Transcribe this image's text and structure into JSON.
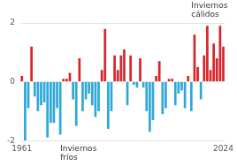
{
  "chart_data": {
    "type": "bar",
    "categories": [
      "1961",
      null,
      null,
      null,
      null,
      null,
      null,
      null,
      null,
      null,
      null,
      null,
      null,
      null,
      null,
      null,
      null,
      null,
      null,
      null,
      null,
      null,
      null,
      null,
      null,
      null,
      null,
      null,
      null,
      null,
      null,
      null,
      null,
      null,
      null,
      null,
      null,
      null,
      null,
      null,
      null,
      null,
      null,
      null,
      null,
      null,
      null,
      null,
      null,
      null,
      null,
      null,
      null,
      null,
      null,
      null,
      null,
      null,
      null,
      null,
      null,
      null,
      null,
      "2024"
    ],
    "values": [
      0.2,
      -2.0,
      -0.9,
      1.2,
      -0.5,
      -1.0,
      -0.8,
      -0.7,
      -1.9,
      -1.4,
      -1.4,
      -0.9,
      -1.8,
      0.1,
      0.1,
      0.3,
      -0.6,
      -1.5,
      0.8,
      -1.0,
      -0.6,
      -0.4,
      -0.8,
      -1.2,
      -1.0,
      0.4,
      1.8,
      -1.6,
      -1.0,
      0.9,
      0.4,
      0.9,
      1.1,
      -0.8,
      0.9,
      -0.1,
      -0.2,
      0.8,
      -0.2,
      -1.0,
      -1.7,
      -1.3,
      0.2,
      0.7,
      -1.1,
      -0.9,
      0.1,
      0.1,
      -0.8,
      -0.4,
      -0.3,
      -0.9,
      0.2,
      -1.0,
      1.6,
      0.5,
      -0.6,
      0.9,
      1.9,
      0.4,
      1.3,
      0.8,
      1.9,
      1.2
    ],
    "colors": [
      "#d7262b",
      "#2fa8d8",
      "#2fa8d8",
      "#d7262b",
      "#2fa8d8",
      "#2fa8d8",
      "#2fa8d8",
      "#2fa8d8",
      "#2fa8d8",
      "#2fa8d8",
      "#2fa8d8",
      "#2fa8d8",
      "#2fa8d8",
      "#d7262b",
      "#d7262b",
      "#d7262b",
      "#2fa8d8",
      "#2fa8d8",
      "#d7262b",
      "#2fa8d8",
      "#2fa8d8",
      "#2fa8d8",
      "#2fa8d8",
      "#2fa8d8",
      "#2fa8d8",
      "#d7262b",
      "#d7262b",
      "#2fa8d8",
      "#2fa8d8",
      "#d7262b",
      "#d7262b",
      "#d7262b",
      "#d7262b",
      "#2fa8d8",
      "#d7262b",
      "#2fa8d8",
      "#2fa8d8",
      "#d7262b",
      "#2fa8d8",
      "#2fa8d8",
      "#2fa8d8",
      "#2fa8d8",
      "#d7262b",
      "#d7262b",
      "#2fa8d8",
      "#2fa8d8",
      "#d7262b",
      "#d7262b",
      "#2fa8d8",
      "#2fa8d8",
      "#2fa8d8",
      "#2fa8d8",
      "#d7262b",
      "#2fa8d8",
      "#d7262b",
      "#d7262b",
      "#2fa8d8",
      "#d7262b",
      "#d7262b",
      "#d7262b",
      "#d7262b",
      "#d7262b",
      "#d7262b",
      "#d7262b"
    ],
    "ylim": [
      -2,
      2
    ],
    "yticks": [
      -2,
      0,
      2
    ],
    "grid": true,
    "annotations": [
      "Inviernos cálidos",
      "Inviernos fríos"
    ]
  }
}
